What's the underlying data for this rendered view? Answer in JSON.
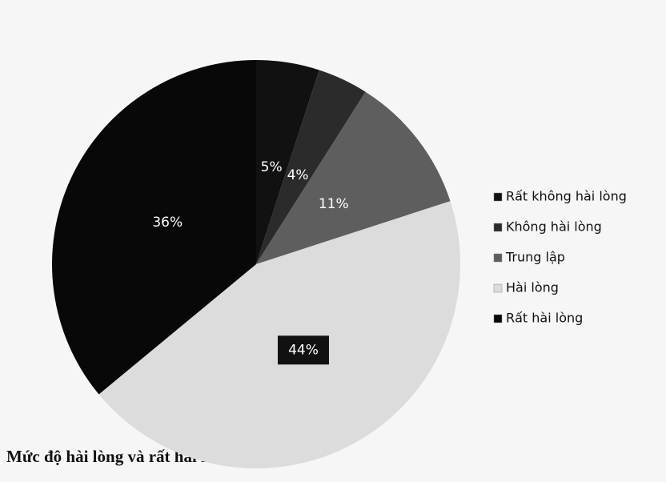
{
  "chart_data": {
    "type": "pie",
    "categories": [
      "Rất không hài lòng",
      "Không hài lòng",
      "Trung lập",
      "Hài lòng",
      "Rất hài lòng"
    ],
    "values": [
      5,
      4,
      11,
      44,
      36
    ],
    "value_labels": [
      "5%",
      "4%",
      "11%",
      "44%",
      "36%"
    ],
    "colors": [
      "#111111",
      "#2b2b2b",
      "#5e5e5e",
      "#dcdcdc",
      "#080808"
    ],
    "legend": "right",
    "annotation": "Mức độ hài lòng và rất hài lòng là 80 %"
  }
}
